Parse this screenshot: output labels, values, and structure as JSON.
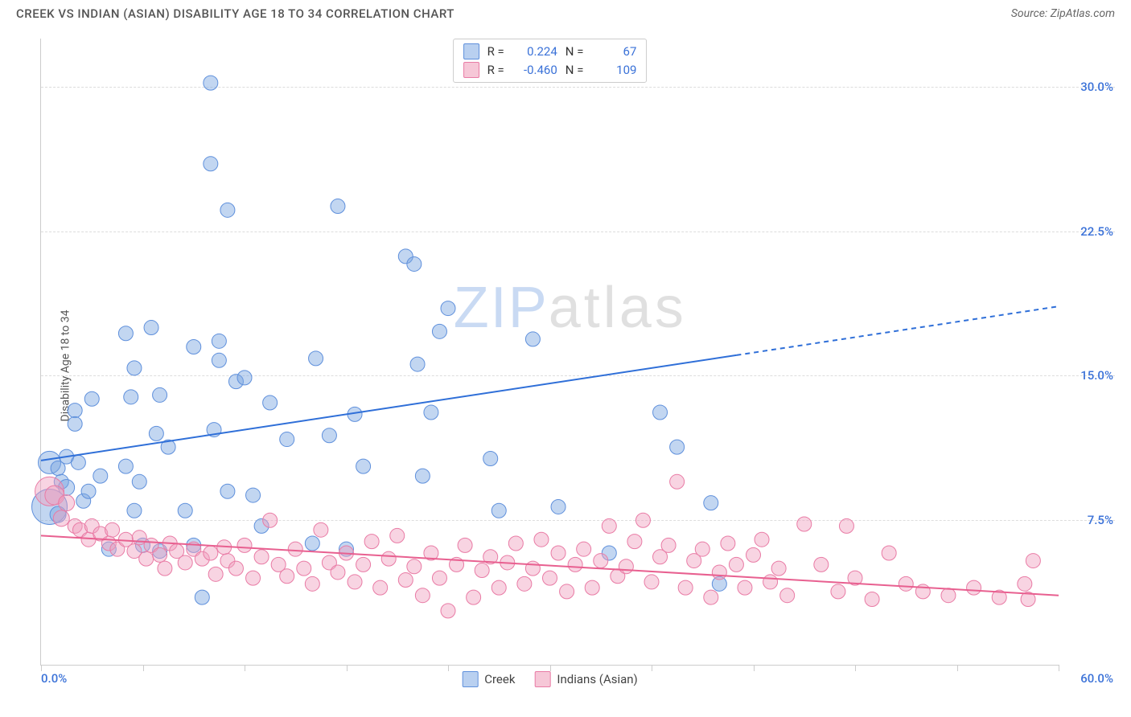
{
  "header": {
    "title": "CREEK VS INDIAN (ASIAN) DISABILITY AGE 18 TO 34 CORRELATION CHART",
    "source": "Source: ZipAtlas.com"
  },
  "watermark": {
    "part1": "ZIP",
    "part2": "atlas"
  },
  "chart": {
    "type": "scatter",
    "y_axis_label": "Disability Age 18 to 34",
    "x_range": [
      0,
      60
    ],
    "y_range": [
      0,
      32.5
    ],
    "y_ticks": [
      7.5,
      15.0,
      22.5,
      30.0
    ],
    "y_tick_labels": [
      "7.5%",
      "15.0%",
      "22.5%",
      "30.0%"
    ],
    "y_tick_color": "#3b72d8",
    "x_ticks": [
      0,
      6,
      12,
      18,
      24,
      30,
      36,
      42,
      48,
      54,
      60
    ],
    "x_end_labels": {
      "start": "0.0%",
      "end": "60.0%"
    },
    "x_label_color": "#3b72d8",
    "grid_color": "#dddddd",
    "axis_color": "#cccccc",
    "background_color": "#ffffff",
    "stats_legend": [
      {
        "swatch_fill": "#b9d0f0",
        "swatch_border": "#5f90dc",
        "r_label": "R =",
        "r_value": "0.224",
        "n_label": "N =",
        "n_value": "67",
        "value_color": "#3b72d8"
      },
      {
        "swatch_fill": "#f6c7d7",
        "swatch_border": "#e97ba5",
        "r_label": "R =",
        "r_value": "-0.460",
        "n_label": "N =",
        "n_value": "109",
        "value_color": "#3b72d8"
      }
    ],
    "bottom_legend": [
      {
        "swatch_fill": "#b9d0f0",
        "swatch_border": "#5f90dc",
        "label": "Creek"
      },
      {
        "swatch_fill": "#f6c7d7",
        "swatch_border": "#e97ba5",
        "label": "Indians (Asian)"
      }
    ],
    "series": [
      {
        "name": "Creek",
        "color_fill": "rgba(120,165,225,0.45)",
        "color_stroke": "#5f90dc",
        "marker_radius": 9,
        "trendline": {
          "x1": 0,
          "y1": 10.6,
          "x2": 60,
          "y2": 18.6,
          "solid_until_x": 41,
          "color": "#2f6fd8",
          "width": 2
        },
        "points": [
          [
            0.5,
            10.5,
            14
          ],
          [
            0.5,
            8.2,
            22
          ],
          [
            1.0,
            7.8,
            10
          ],
          [
            1.0,
            10.2,
            9
          ],
          [
            1.2,
            9.5,
            9
          ],
          [
            1.5,
            9.2,
            10
          ],
          [
            1.5,
            10.8,
            9
          ],
          [
            2.0,
            13.2,
            9
          ],
          [
            2.0,
            12.5,
            9
          ],
          [
            2.2,
            10.5,
            9
          ],
          [
            2.5,
            8.5,
            9
          ],
          [
            2.8,
            9.0,
            9
          ],
          [
            3.0,
            13.8,
            9
          ],
          [
            3.5,
            9.8,
            9
          ],
          [
            4.0,
            6.0,
            9
          ],
          [
            5.0,
            17.2,
            9
          ],
          [
            5.0,
            10.3,
            9
          ],
          [
            5.3,
            13.9,
            9
          ],
          [
            5.5,
            15.4,
            9
          ],
          [
            5.5,
            8.0,
            9
          ],
          [
            5.8,
            9.5,
            9
          ],
          [
            6.0,
            6.2,
            9
          ],
          [
            6.5,
            17.5,
            9
          ],
          [
            6.8,
            12.0,
            9
          ],
          [
            7.0,
            5.9,
            9
          ],
          [
            7.0,
            14.0,
            9
          ],
          [
            7.5,
            11.3,
            9
          ],
          [
            8.5,
            8.0,
            9
          ],
          [
            9.0,
            16.5,
            9
          ],
          [
            9.0,
            6.2,
            9
          ],
          [
            9.5,
            3.5,
            9
          ],
          [
            10.0,
            26.0,
            9
          ],
          [
            10.0,
            30.2,
            9
          ],
          [
            10.2,
            12.2,
            9
          ],
          [
            10.5,
            15.8,
            9
          ],
          [
            10.5,
            16.8,
            9
          ],
          [
            11.0,
            23.6,
            9
          ],
          [
            11.0,
            9.0,
            9
          ],
          [
            11.5,
            14.7,
            9
          ],
          [
            12.0,
            14.9,
            9
          ],
          [
            12.5,
            8.8,
            9
          ],
          [
            13.0,
            7.2,
            9
          ],
          [
            13.5,
            13.6,
            9
          ],
          [
            14.5,
            11.7,
            9
          ],
          [
            16.0,
            6.3,
            9
          ],
          [
            16.2,
            15.9,
            9
          ],
          [
            17.0,
            11.9,
            9
          ],
          [
            17.5,
            23.8,
            9
          ],
          [
            18.0,
            6.0,
            9
          ],
          [
            18.5,
            13.0,
            9
          ],
          [
            19.0,
            10.3,
            9
          ],
          [
            21.5,
            21.2,
            9
          ],
          [
            22.0,
            20.8,
            9
          ],
          [
            22.2,
            15.6,
            9
          ],
          [
            22.5,
            9.8,
            9
          ],
          [
            23.0,
            13.1,
            9
          ],
          [
            23.5,
            17.3,
            9
          ],
          [
            24.0,
            18.5,
            9
          ],
          [
            26.5,
            10.7,
            9
          ],
          [
            27.0,
            8.0,
            9
          ],
          [
            29.0,
            16.9,
            9
          ],
          [
            30.5,
            8.2,
            9
          ],
          [
            33.5,
            5.8,
            9
          ],
          [
            36.5,
            13.1,
            9
          ],
          [
            37.5,
            11.3,
            9
          ],
          [
            39.5,
            8.4,
            9
          ],
          [
            40.0,
            4.2,
            9
          ]
        ]
      },
      {
        "name": "Indians (Asian)",
        "color_fill": "rgba(240,160,190,0.45)",
        "color_stroke": "#e97ba5",
        "marker_radius": 9,
        "trendline": {
          "x1": 0,
          "y1": 6.7,
          "x2": 60,
          "y2": 3.6,
          "solid_until_x": 60,
          "color": "#e86090",
          "width": 2
        },
        "points": [
          [
            0.5,
            9.0,
            18
          ],
          [
            0.8,
            8.8,
            12
          ],
          [
            1.2,
            7.6,
            10
          ],
          [
            1.5,
            8.4,
            10
          ],
          [
            2.0,
            7.2,
            9
          ],
          [
            2.3,
            7.0,
            9
          ],
          [
            2.8,
            6.5,
            9
          ],
          [
            3.0,
            7.2,
            9
          ],
          [
            3.5,
            6.8,
            9
          ],
          [
            4.0,
            6.3,
            9
          ],
          [
            4.2,
            7.0,
            9
          ],
          [
            4.5,
            6.0,
            9
          ],
          [
            5.0,
            6.5,
            9
          ],
          [
            5.5,
            5.9,
            9
          ],
          [
            5.8,
            6.6,
            9
          ],
          [
            6.2,
            5.5,
            9
          ],
          [
            6.5,
            6.2,
            9
          ],
          [
            7.0,
            5.7,
            9
          ],
          [
            7.3,
            5.0,
            9
          ],
          [
            7.6,
            6.3,
            9
          ],
          [
            8.0,
            5.9,
            9
          ],
          [
            8.5,
            5.3,
            9
          ],
          [
            9.0,
            6.0,
            9
          ],
          [
            9.5,
            5.5,
            9
          ],
          [
            10.0,
            5.8,
            9
          ],
          [
            10.3,
            4.7,
            9
          ],
          [
            10.8,
            6.1,
            9
          ],
          [
            11.0,
            5.4,
            9
          ],
          [
            11.5,
            5.0,
            9
          ],
          [
            12.0,
            6.2,
            9
          ],
          [
            12.5,
            4.5,
            9
          ],
          [
            13.0,
            5.6,
            9
          ],
          [
            13.5,
            7.5,
            9
          ],
          [
            14.0,
            5.2,
            9
          ],
          [
            14.5,
            4.6,
            9
          ],
          [
            15.0,
            6.0,
            9
          ],
          [
            15.5,
            5.0,
            9
          ],
          [
            16.0,
            4.2,
            9
          ],
          [
            16.5,
            7.0,
            9
          ],
          [
            17.0,
            5.3,
            9
          ],
          [
            17.5,
            4.8,
            9
          ],
          [
            18.0,
            5.8,
            9
          ],
          [
            18.5,
            4.3,
            9
          ],
          [
            19.0,
            5.2,
            9
          ],
          [
            19.5,
            6.4,
            9
          ],
          [
            20.0,
            4.0,
            9
          ],
          [
            20.5,
            5.5,
            9
          ],
          [
            21.0,
            6.7,
            9
          ],
          [
            21.5,
            4.4,
            9
          ],
          [
            22.0,
            5.1,
            9
          ],
          [
            22.5,
            3.6,
            9
          ],
          [
            23.0,
            5.8,
            9
          ],
          [
            23.5,
            4.5,
            9
          ],
          [
            24.0,
            2.8,
            9
          ],
          [
            24.5,
            5.2,
            9
          ],
          [
            25.0,
            6.2,
            9
          ],
          [
            25.5,
            3.5,
            9
          ],
          [
            26.0,
            4.9,
            9
          ],
          [
            26.5,
            5.6,
            9
          ],
          [
            27.0,
            4.0,
            9
          ],
          [
            27.5,
            5.3,
            9
          ],
          [
            28.0,
            6.3,
            9
          ],
          [
            28.5,
            4.2,
            9
          ],
          [
            29.0,
            5.0,
            9
          ],
          [
            29.5,
            6.5,
            9
          ],
          [
            30.0,
            4.5,
            9
          ],
          [
            30.5,
            5.8,
            9
          ],
          [
            31.0,
            3.8,
            9
          ],
          [
            31.5,
            5.2,
            9
          ],
          [
            32.0,
            6.0,
            9
          ],
          [
            32.5,
            4.0,
            9
          ],
          [
            33.0,
            5.4,
            9
          ],
          [
            33.5,
            7.2,
            9
          ],
          [
            34.0,
            4.6,
            9
          ],
          [
            34.5,
            5.1,
            9
          ],
          [
            35.0,
            6.4,
            9
          ],
          [
            35.5,
            7.5,
            9
          ],
          [
            36.0,
            4.3,
            9
          ],
          [
            36.5,
            5.6,
            9
          ],
          [
            37.0,
            6.2,
            9
          ],
          [
            37.5,
            9.5,
            9
          ],
          [
            38.0,
            4.0,
            9
          ],
          [
            38.5,
            5.4,
            9
          ],
          [
            39.0,
            6.0,
            9
          ],
          [
            39.5,
            3.5,
            9
          ],
          [
            40.0,
            4.8,
            9
          ],
          [
            40.5,
            6.3,
            9
          ],
          [
            41.0,
            5.2,
            9
          ],
          [
            41.5,
            4.0,
            9
          ],
          [
            42.0,
            5.7,
            9
          ],
          [
            42.5,
            6.5,
            9
          ],
          [
            43.0,
            4.3,
            9
          ],
          [
            43.5,
            5.0,
            9
          ],
          [
            44.0,
            3.6,
            9
          ],
          [
            45.0,
            7.3,
            9
          ],
          [
            46.0,
            5.2,
            9
          ],
          [
            47.0,
            3.8,
            9
          ],
          [
            47.5,
            7.2,
            9
          ],
          [
            48.0,
            4.5,
            9
          ],
          [
            49.0,
            3.4,
            9
          ],
          [
            50.0,
            5.8,
            9
          ],
          [
            51.0,
            4.2,
            9
          ],
          [
            52.0,
            3.8,
            9
          ],
          [
            53.5,
            3.6,
            9
          ],
          [
            55.0,
            4.0,
            9
          ],
          [
            56.5,
            3.5,
            9
          ],
          [
            58.0,
            4.2,
            9
          ],
          [
            58.2,
            3.4,
            9
          ],
          [
            58.5,
            5.4,
            9
          ]
        ]
      }
    ]
  }
}
